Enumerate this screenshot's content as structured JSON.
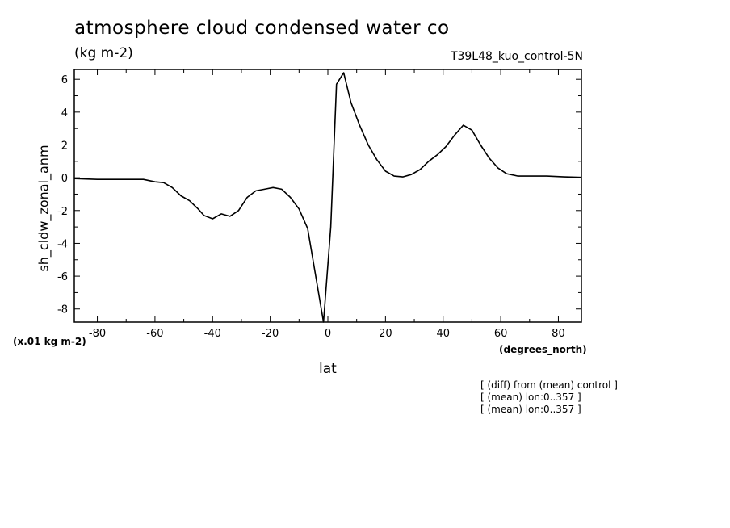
{
  "chart_data": {
    "type": "line",
    "title": "atmosphere cloud condensed water co",
    "units": "(kg m-2)",
    "run_label": "T39L48_kuo_control-5N",
    "xlabel": "lat",
    "ylabel": "sh_cldw_zonal_anm",
    "y_scale_label": "(x.01 kg m-2)",
    "x_units": "(degrees_north)",
    "xlim": [
      -88,
      88
    ],
    "ylim": [
      -8.8,
      6.6
    ],
    "x_ticks": [
      -80,
      -60,
      -40,
      -20,
      0,
      20,
      40,
      60,
      80
    ],
    "y_ticks": [
      -8,
      -6,
      -4,
      -2,
      0,
      2,
      4,
      6
    ],
    "x_tick_labels": [
      "-80",
      "-60",
      "-40",
      "-20",
      "0",
      "20",
      "40",
      "60",
      "80"
    ],
    "y_tick_labels": [
      "-8",
      "-6",
      "-4",
      "-2",
      "0",
      "2",
      "4",
      "6"
    ],
    "notes": [
      "[ (diff) from (mean) control ]",
      "[ (mean) lon:0..357 ]",
      "[ (mean) lon:0..357 ]"
    ],
    "series": [
      {
        "x": [
          -88,
          -80,
          -70,
          -64,
          -60,
          -57,
          -54,
          -51,
          -48,
          -45,
          -43,
          -40,
          -37,
          -34,
          -31,
          -28,
          -25,
          -22,
          -19,
          -16,
          -13,
          -10,
          -7,
          -4,
          -1.5,
          1,
          3,
          5.5,
          8,
          11,
          14,
          17,
          20,
          23,
          26,
          29,
          32,
          35,
          38,
          41,
          44,
          47,
          50,
          53,
          56,
          59,
          62,
          66,
          70,
          76,
          82,
          88
        ],
        "y": [
          -0.05,
          -0.1,
          -0.1,
          -0.1,
          -0.25,
          -0.3,
          -0.6,
          -1.1,
          -1.4,
          -1.9,
          -2.3,
          -2.5,
          -2.2,
          -2.35,
          -2.0,
          -1.2,
          -0.8,
          -0.7,
          -0.6,
          -0.7,
          -1.2,
          -1.9,
          -3.1,
          -6.2,
          -8.8,
          -3.0,
          5.7,
          6.4,
          4.6,
          3.2,
          2.0,
          1.1,
          0.4,
          0.1,
          0.05,
          0.2,
          0.5,
          1.0,
          1.4,
          1.9,
          2.6,
          3.2,
          2.9,
          2.0,
          1.2,
          0.6,
          0.25,
          0.1,
          0.1,
          0.1,
          0.05,
          0.02
        ]
      }
    ],
    "line_color": "#000000",
    "grid": false
  }
}
